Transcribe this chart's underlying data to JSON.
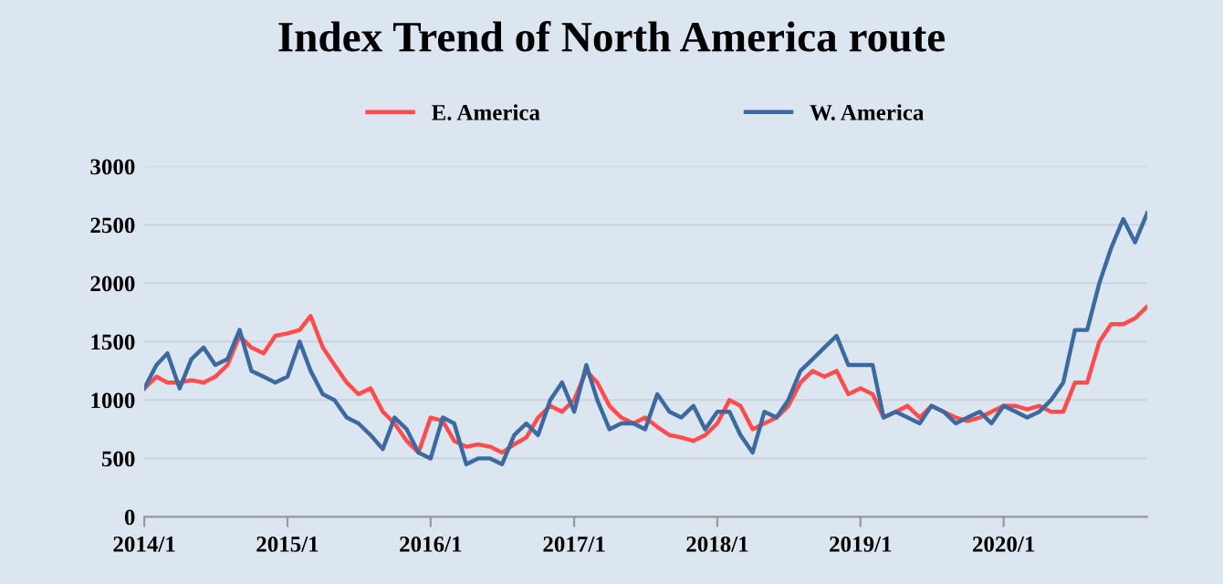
{
  "chart_data": {
    "type": "line",
    "title": "Index Trend of North America route",
    "x": [
      "2014-01",
      "2014-02",
      "2014-03",
      "2014-04",
      "2014-05",
      "2014-06",
      "2014-07",
      "2014-08",
      "2014-09",
      "2014-10",
      "2014-11",
      "2014-12",
      "2015-01",
      "2015-02",
      "2015-03",
      "2015-04",
      "2015-05",
      "2015-06",
      "2015-07",
      "2015-08",
      "2015-09",
      "2015-10",
      "2015-11",
      "2015-12",
      "2016-01",
      "2016-02",
      "2016-03",
      "2016-04",
      "2016-05",
      "2016-06",
      "2016-07",
      "2016-08",
      "2016-09",
      "2016-10",
      "2016-11",
      "2016-12",
      "2017-01",
      "2017-02",
      "2017-03",
      "2017-04",
      "2017-05",
      "2017-06",
      "2017-07",
      "2017-08",
      "2017-09",
      "2017-10",
      "2017-11",
      "2017-12",
      "2018-01",
      "2018-02",
      "2018-03",
      "2018-04",
      "2018-05",
      "2018-06",
      "2018-07",
      "2018-08",
      "2018-09",
      "2018-10",
      "2018-11",
      "2018-12",
      "2019-01",
      "2019-02",
      "2019-03",
      "2019-04",
      "2019-05",
      "2019-06",
      "2019-07",
      "2019-08",
      "2019-09",
      "2019-10",
      "2019-11",
      "2019-12",
      "2020-01",
      "2020-02",
      "2020-03",
      "2020-04",
      "2020-05",
      "2020-06",
      "2020-07",
      "2020-08",
      "2020-09",
      "2020-10",
      "2020-11",
      "2020-12",
      "2021-01"
    ],
    "series": [
      {
        "name": "E. America",
        "color": "#ff4b4b",
        "values": [
          1100,
          1200,
          1150,
          1150,
          1170,
          1150,
          1200,
          1300,
          1550,
          1450,
          1400,
          1550,
          1570,
          1600,
          1720,
          1450,
          1300,
          1150,
          1050,
          1100,
          900,
          800,
          650,
          550,
          850,
          820,
          650,
          600,
          620,
          600,
          550,
          620,
          680,
          850,
          950,
          900,
          1000,
          1250,
          1150,
          950,
          850,
          800,
          850,
          770,
          700,
          680,
          650,
          700,
          800,
          1000,
          950,
          750,
          800,
          850,
          950,
          1150,
          1250,
          1200,
          1250,
          1050,
          1100,
          1050,
          850,
          900,
          950,
          850,
          950,
          900,
          850,
          820,
          850,
          900,
          950,
          950,
          920,
          950,
          900,
          900,
          1150,
          1150,
          1500,
          1650,
          1650,
          1700,
          1800
        ]
      },
      {
        "name": "W. America",
        "color": "#3c6aa0",
        "values": [
          1100,
          1300,
          1400,
          1100,
          1350,
          1450,
          1300,
          1350,
          1600,
          1250,
          1200,
          1150,
          1200,
          1500,
          1250,
          1050,
          1000,
          850,
          800,
          700,
          580,
          850,
          750,
          550,
          500,
          850,
          800,
          450,
          500,
          500,
          450,
          700,
          800,
          700,
          1000,
          1150,
          900,
          1300,
          1000,
          750,
          800,
          800,
          750,
          1050,
          900,
          850,
          950,
          750,
          900,
          900,
          700,
          550,
          900,
          850,
          1000,
          1250,
          1350,
          1450,
          1550,
          1300,
          1300,
          1300,
          850,
          900,
          850,
          800,
          950,
          900,
          800,
          850,
          900,
          800,
          950,
          900,
          850,
          900,
          1000,
          1150,
          1600,
          1600,
          2000,
          2300,
          2550,
          2350,
          2600
        ]
      }
    ],
    "xlim": [
      "2014-01",
      "2021-01"
    ],
    "xticks": [
      {
        "value": "2014-01",
        "label": "2014/1"
      },
      {
        "value": "2015-01",
        "label": "2015/1"
      },
      {
        "value": "2016-01",
        "label": "2016/1"
      },
      {
        "value": "2017-01",
        "label": "2017/1"
      },
      {
        "value": "2018-01",
        "label": "2018/1"
      },
      {
        "value": "2019-01",
        "label": "2019/1"
      },
      {
        "value": "2020-01",
        "label": "2020/1"
      }
    ],
    "ylim": [
      0,
      3000
    ],
    "yticks": [
      0,
      500,
      1000,
      1500,
      2000,
      2500,
      3000
    ],
    "grid": "y",
    "legend": "top",
    "marker": "none",
    "line_style": "solid"
  }
}
